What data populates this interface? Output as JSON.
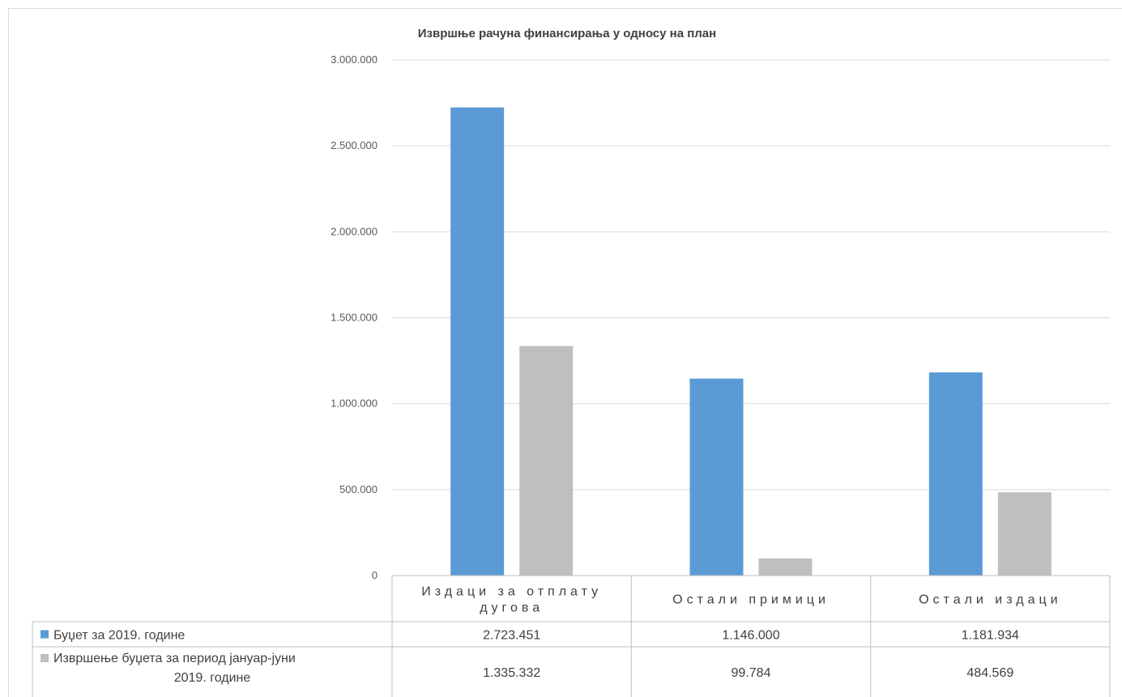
{
  "chart_data": {
    "type": "bar",
    "title": "Извршње рачуна финансирања у односу на план",
    "categories": [
      [
        "Издаци за отплату",
        "дугова"
      ],
      [
        "Остали примици"
      ],
      [
        "Остали издаци"
      ]
    ],
    "series": [
      {
        "name": "Буџет за 2019. године",
        "color": "#5b9bd5",
        "values": [
          2723451,
          1146000,
          1181934
        ],
        "labels": [
          "2.723.451",
          "1.146.000",
          "1.181.934"
        ]
      },
      {
        "name": [
          "Извршење    буџета за период  јануар-јуни",
          "2019. године"
        ],
        "color": "#bfbfbf",
        "values": [
          1335332,
          99784,
          484569
        ],
        "labels": [
          "1.335.332",
          "99.784",
          "484.569"
        ]
      }
    ],
    "ylim": [
      0,
      3000000
    ],
    "yticks": [
      0,
      500000,
      1000000,
      1500000,
      2000000,
      2500000,
      3000000
    ],
    "ytick_labels": [
      "0",
      "500.000",
      "1.000.000",
      "1.500.000",
      "2.000.000",
      "2.500.000",
      "3.000.000"
    ],
    "grid": true,
    "legend": "data-table"
  }
}
